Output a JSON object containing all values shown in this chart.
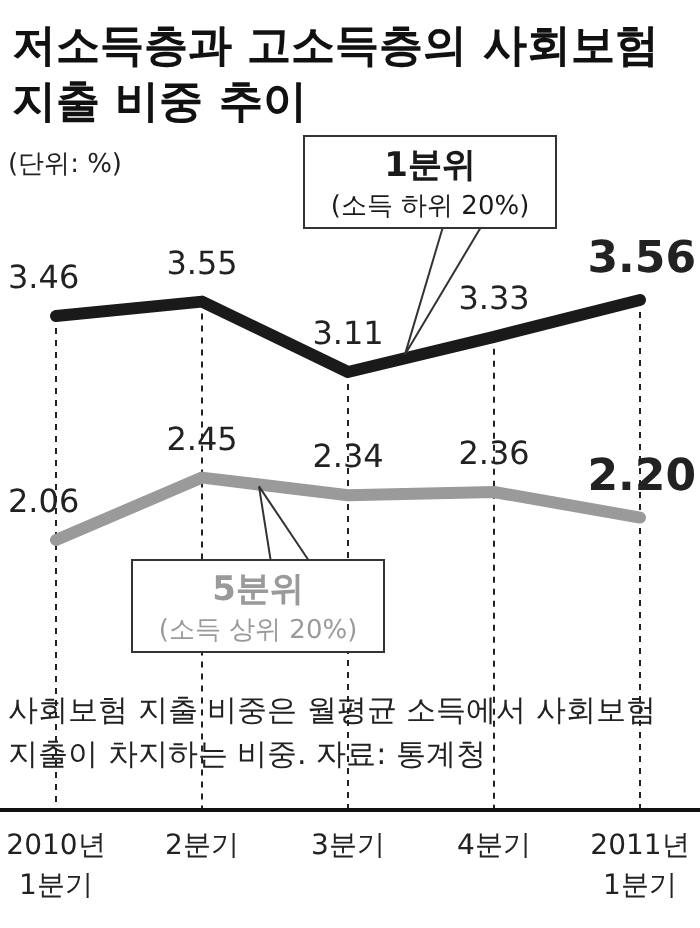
{
  "chart_data": {
    "type": "line",
    "title": "저소득층과 고소득층의 사회보험 지출 비중 추이",
    "subtitle": "(단위: %)",
    "categories": [
      "2010년 1분기",
      "2분기",
      "3분기",
      "4분기",
      "2011년 1분기"
    ],
    "series": [
      {
        "name": "1분위 (소득 하위 20%)",
        "color": "#1a1a1a",
        "values": [
          3.46,
          3.55,
          3.11,
          3.33,
          3.56
        ],
        "value_labels": [
          "3.46",
          "3.55",
          "3.11",
          "3.33",
          "3.56"
        ]
      },
      {
        "name": "5분위 (소득 상위 20%)",
        "color": "#9a9a9a",
        "values": [
          2.06,
          2.45,
          2.34,
          2.36,
          2.2
        ],
        "value_labels": [
          "2.06",
          "2.45",
          "2.34",
          "2.36",
          "2.20"
        ]
      }
    ],
    "grid": "x",
    "annotations": [
      "사회보험 지출 비중은 월평균 소득에서 사회보험 지출이 차지하는 비중.",
      "자료: 통계청"
    ]
  }
}
